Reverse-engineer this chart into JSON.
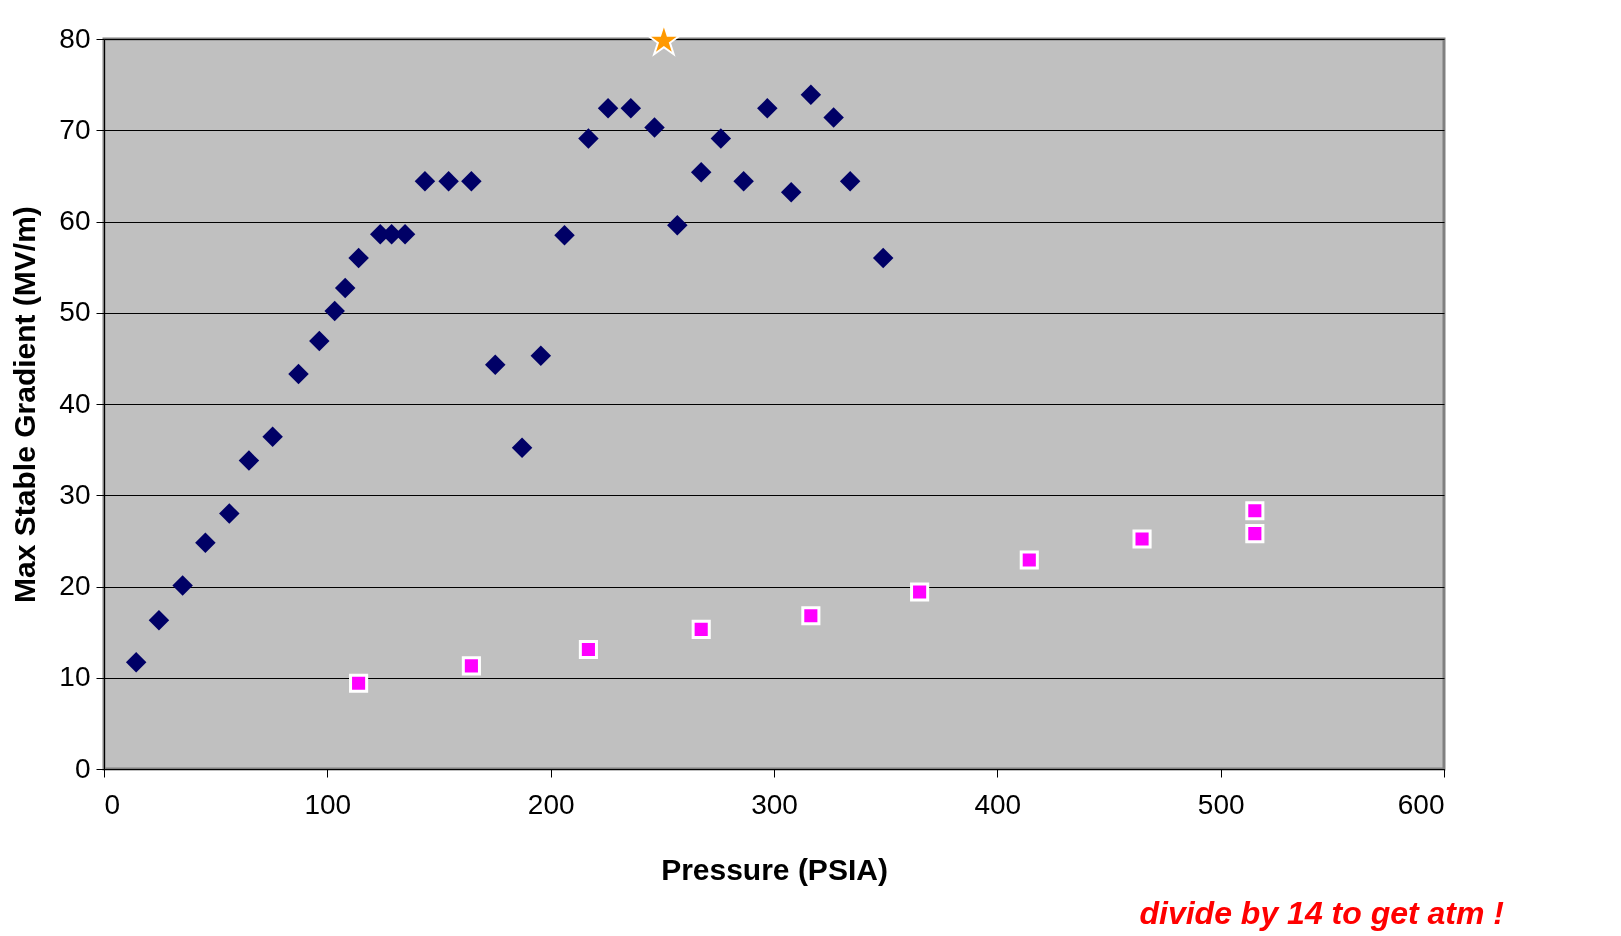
{
  "chart_data": {
    "type": "scatter",
    "xlabel": "Pressure (PSIA)",
    "ylabel": "Max Stable Gradient (MV/m)",
    "xlim": [
      0,
      600
    ],
    "xticks": [
      0,
      100,
      200,
      300,
      400,
      500,
      600
    ],
    "ylim": [
      0,
      80
    ],
    "yticks": [
      0,
      10,
      20,
      30,
      40,
      50,
      60,
      70,
      80
    ],
    "grid": "y",
    "legend": false,
    "series": [
      {
        "color": "#000066",
        "marker": "diamond",
        "x": [
          14.4,
          24.6,
          35.2,
          45.4,
          56.1,
          64.9,
          75.5,
          87.1,
          96.4,
          103.3,
          108.0,
          114.0,
          123.7,
          128.8,
          134.8,
          143.7,
          154.3,
          164.5,
          175.2,
          187.2,
          195.6,
          206.2,
          216.9,
          225.7,
          235.9,
          246.5,
          256.7,
          267.4,
          276.2,
          286.4,
          297.0,
          307.7,
          316.5,
          326.7,
          334.1,
          348.9
        ],
        "values": [
          11.7,
          16.3,
          20.1,
          24.8,
          28.0,
          33.8,
          36.4,
          43.3,
          46.9,
          50.2,
          52.7,
          56.0,
          58.6,
          58.6,
          58.6,
          64.4,
          64.4,
          64.4,
          44.3,
          35.2,
          45.3,
          58.5,
          69.1,
          72.4,
          72.4,
          70.3,
          59.6,
          65.4,
          69.1,
          64.4,
          72.4,
          63.2,
          73.9,
          71.4,
          64.4,
          56.0
        ]
      },
      {
        "color": "#ff00ff",
        "marker": "square",
        "x": [
          114.0,
          164.5,
          216.9,
          267.4,
          316.5,
          365.2,
          414.3,
          464.8,
          515.3,
          515.3
        ],
        "values": [
          9.4,
          11.3,
          13.1,
          15.3,
          16.8,
          19.4,
          22.9,
          25.2,
          28.3,
          25.8
        ]
      },
      {
        "color": "#ff9900",
        "marker": "star",
        "x": [
          250.7
        ],
        "values": [
          79.8
        ]
      }
    ],
    "annotations": [
      "divide by 14 to get atm !"
    ]
  }
}
